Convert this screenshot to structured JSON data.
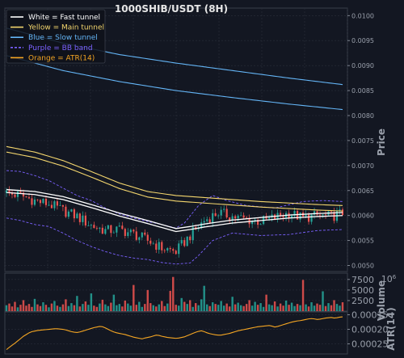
{
  "chart_data": {
    "type": "line",
    "title": "1000SHIB/USDT (8H)",
    "candle_count": 120,
    "colors": {
      "background": "#131722",
      "grid": "#2a2f3b",
      "up": "#26a69a",
      "down": "#ef5350",
      "fast_tunnel": "#ffffff",
      "main_tunnel": "#f5d76e",
      "slow_tunnel": "#64b5f6",
      "bb_band": "#7b61ff",
      "atr": "#f5a623"
    },
    "legend": {
      "placement": "top-left",
      "entries": [
        {
          "label": "White = Fast tunnel",
          "color": "#ffffff",
          "dash": false
        },
        {
          "label": "Yellow = Main tunnel",
          "color": "#f5d76e",
          "dash": false
        },
        {
          "label": "Blue = Slow tunnel",
          "color": "#64b5f6",
          "dash": false
        },
        {
          "label": "Purple = BB band",
          "color": "#7b61ff",
          "dash": true
        },
        {
          "label": "Orange = ATR(14)",
          "color": "#f5a623",
          "dash": false
        }
      ]
    },
    "price_panel": {
      "ylabel": "Price",
      "ylim": [
        0.00488,
        0.01015
      ],
      "ticks": [
        0.005,
        0.0055,
        0.006,
        0.0065,
        0.007,
        0.0075,
        0.008,
        0.0085,
        0.009,
        0.0095,
        0.01
      ],
      "tick_labels": [
        "0.0050",
        "0.0055",
        "0.0060",
        "0.0065",
        "0.0070",
        "0.0075",
        "0.0080",
        "0.0085",
        "0.0090",
        "0.0095",
        "0.0100"
      ],
      "grid": true,
      "close_path": [
        [
          0,
          0.00645
        ],
        [
          5,
          0.0064
        ],
        [
          10,
          0.0063
        ],
        [
          15,
          0.00623
        ],
        [
          20,
          0.0061
        ],
        [
          25,
          0.00598
        ],
        [
          30,
          0.0058
        ],
        [
          35,
          0.0057
        ],
        [
          40,
          0.00572
        ],
        [
          45,
          0.00563
        ],
        [
          50,
          0.0055
        ],
        [
          55,
          0.00535
        ],
        [
          60,
          0.00528
        ],
        [
          65,
          0.0056
        ],
        [
          70,
          0.0059
        ],
        [
          75,
          0.00606
        ],
        [
          80,
          0.00598
        ],
        [
          85,
          0.00592
        ],
        [
          90,
          0.00588
        ],
        [
          95,
          0.00596
        ],
        [
          100,
          0.00605
        ],
        [
          105,
          0.00595
        ],
        [
          110,
          0.006
        ],
        [
          115,
          0.00598
        ],
        [
          119,
          0.00605
        ]
      ],
      "fast_tunnel_upper": [
        [
          0,
          0.00652
        ],
        [
          10,
          0.00648
        ],
        [
          20,
          0.00638
        ],
        [
          30,
          0.00622
        ],
        [
          40,
          0.00605
        ],
        [
          50,
          0.0059
        ],
        [
          55,
          0.00582
        ],
        [
          60,
          0.00574
        ],
        [
          65,
          0.00578
        ],
        [
          70,
          0.00583
        ],
        [
          80,
          0.00591
        ],
        [
          90,
          0.00596
        ],
        [
          100,
          0.00601
        ],
        [
          110,
          0.00604
        ],
        [
          119,
          0.00606
        ]
      ],
      "fast_tunnel_lower": [
        [
          0,
          0.00646
        ],
        [
          10,
          0.00642
        ],
        [
          20,
          0.00632
        ],
        [
          30,
          0.00616
        ],
        [
          40,
          0.00599
        ],
        [
          50,
          0.00584
        ],
        [
          55,
          0.00576
        ],
        [
          60,
          0.00568
        ],
        [
          65,
          0.00572
        ],
        [
          70,
          0.00577
        ],
        [
          80,
          0.00585
        ],
        [
          90,
          0.0059
        ],
        [
          100,
          0.00595
        ],
        [
          110,
          0.00598
        ],
        [
          119,
          0.006
        ]
      ],
      "main_tunnel_upper": [
        [
          0,
          0.00738
        ],
        [
          10,
          0.00727
        ],
        [
          20,
          0.0071
        ],
        [
          30,
          0.00688
        ],
        [
          40,
          0.00665
        ],
        [
          50,
          0.00648
        ],
        [
          60,
          0.0064
        ],
        [
          70,
          0.00636
        ],
        [
          80,
          0.00632
        ],
        [
          90,
          0.00628
        ],
        [
          100,
          0.00625
        ],
        [
          110,
          0.00622
        ],
        [
          119,
          0.0062
        ]
      ],
      "main_tunnel_lower": [
        [
          0,
          0.00727
        ],
        [
          10,
          0.00716
        ],
        [
          20,
          0.00699
        ],
        [
          30,
          0.00677
        ],
        [
          40,
          0.00654
        ],
        [
          50,
          0.00637
        ],
        [
          60,
          0.00629
        ],
        [
          70,
          0.00625
        ],
        [
          80,
          0.00621
        ],
        [
          90,
          0.00617
        ],
        [
          100,
          0.00614
        ],
        [
          110,
          0.00611
        ],
        [
          119,
          0.00609
        ]
      ],
      "slow_tunnel_upper": [
        [
          0,
          0.00975
        ],
        [
          20,
          0.00945
        ],
        [
          40,
          0.00922
        ],
        [
          60,
          0.00905
        ],
        [
          80,
          0.0089
        ],
        [
          100,
          0.00875
        ],
        [
          119,
          0.00862
        ]
      ],
      "slow_tunnel_lower": [
        [
          0,
          0.0092
        ],
        [
          20,
          0.0089
        ],
        [
          40,
          0.00868
        ],
        [
          60,
          0.0085
        ],
        [
          80,
          0.00836
        ],
        [
          100,
          0.00823
        ],
        [
          119,
          0.00812
        ]
      ],
      "bb_upper": [
        [
          0,
          0.0069
        ],
        [
          5,
          0.00688
        ],
        [
          10,
          0.0068
        ],
        [
          15,
          0.0067
        ],
        [
          20,
          0.00655
        ],
        [
          25,
          0.0064
        ],
        [
          30,
          0.0063
        ],
        [
          35,
          0.00615
        ],
        [
          40,
          0.00603
        ],
        [
          45,
          0.00595
        ],
        [
          50,
          0.00588
        ],
        [
          55,
          0.00582
        ],
        [
          60,
          0.00575
        ],
        [
          63,
          0.00585
        ],
        [
          68,
          0.0062
        ],
        [
          73,
          0.0064
        ],
        [
          78,
          0.0063
        ],
        [
          85,
          0.0062
        ],
        [
          95,
          0.00615
        ],
        [
          105,
          0.00628
        ],
        [
          112,
          0.0063
        ],
        [
          119,
          0.00628
        ]
      ],
      "bb_lower": [
        [
          0,
          0.00595
        ],
        [
          5,
          0.0059
        ],
        [
          10,
          0.00582
        ],
        [
          15,
          0.00578
        ],
        [
          20,
          0.00565
        ],
        [
          25,
          0.0055
        ],
        [
          30,
          0.00538
        ],
        [
          35,
          0.00528
        ],
        [
          40,
          0.0052
        ],
        [
          45,
          0.00515
        ],
        [
          50,
          0.00512
        ],
        [
          55,
          0.00506
        ],
        [
          60,
          0.00503
        ],
        [
          65,
          0.00505
        ],
        [
          68,
          0.0052
        ],
        [
          73,
          0.0055
        ],
        [
          80,
          0.00565
        ],
        [
          90,
          0.0056
        ],
        [
          100,
          0.00562
        ],
        [
          110,
          0.0057
        ],
        [
          119,
          0.00572
        ]
      ]
    },
    "volume_panel": {
      "ylabel": "Volume",
      "offset_label": "10^6",
      "ylim": [
        0,
        9000
      ],
      "ticks": [
        2500,
        5000,
        7500
      ],
      "tick_labels": [
        "2500",
        "5000",
        "7500"
      ],
      "values": [
        1400,
        1800,
        1100,
        2200,
        900,
        1500,
        2600,
        1300,
        1700,
        1000,
        2900,
        1600,
        1200,
        2100,
        1500,
        900,
        1800,
        2400,
        1300,
        1000,
        1600,
        2800,
        1200,
        1900,
        1400,
        3600,
        1100,
        1700,
        2300,
        1500,
        4200,
        1300,
        1000,
        1800,
        2700,
        1600,
        1200,
        2000,
        3900,
        1400,
        1700,
        1100,
        2500,
        1800,
        1300,
        6200,
        1500,
        2200,
        1000,
        1700,
        5000,
        1900,
        1400,
        1100,
        1600,
        2400,
        1200,
        1800,
        4800,
        8100,
        1500,
        1300,
        3100,
        2200,
        1700,
        2600,
        1000,
        1900,
        1400,
        2800,
        6000,
        1600,
        1200,
        2100,
        1700,
        1500,
        2400,
        1300,
        1800,
        1100,
        3400,
        1600,
        2000,
        1400,
        1200,
        1700,
        2600,
        1300,
        2200,
        1500,
        1900,
        1000,
        3900,
        1600,
        1400,
        2300,
        1100,
        1800,
        1300,
        2500,
        1500,
        2000,
        1200,
        1700,
        1400,
        7400,
        1600,
        1100,
        2100,
        1300,
        1800,
        1500,
        4700,
        1200,
        1900,
        1400,
        2600,
        1700,
        1300,
        2100
      ]
    },
    "atr_panel": {
      "ylabel": "ATR(14)",
      "ylim": [
        0.00014,
        0.000285
      ],
      "ticks": [
        0.00015,
        0.0002,
        0.00025
      ],
      "tick_labels": [
        "0.00015",
        "0.00020",
        "0.00025"
      ],
      "values": [
        0.00027,
        0.000262,
        0.000255,
        0.000248,
        0.00024,
        0.000232,
        0.000224,
        0.000218,
        0.000212,
        0.000208,
        0.000206,
        0.000204,
        0.000203,
        0.000202,
        0.000201,
        0.0002,
        0.000199,
        0.000198,
        0.000198,
        0.000199,
        0.0002,
        0.000202,
        0.000205,
        0.000208,
        0.00021,
        0.000211,
        0.000209,
        0.000206,
        0.000203,
        0.0002,
        0.000197,
        0.000194,
        0.000192,
        0.00019,
        0.000191,
        0.000195,
        0.0002,
        0.000205,
        0.000209,
        0.000212,
        0.000214,
        0.000216,
        0.000218,
        0.000221,
        0.000224,
        0.000227,
        0.000229,
        0.000231,
        0.000233,
        0.00023,
        0.000228,
        0.000226,
        0.000223,
        0.00022,
        0.000221,
        0.000224,
        0.000226,
        0.000228,
        0.000229,
        0.00023,
        0.000231,
        0.00023,
        0.000228,
        0.000226,
        0.000222,
        0.000218,
        0.000214,
        0.00021,
        0.000207,
        0.000205,
        0.000208,
        0.000212,
        0.000215,
        0.000217,
        0.000219,
        0.00022,
        0.00022,
        0.000218,
        0.000216,
        0.000214,
        0.000211,
        0.000208,
        0.000205,
        0.000203,
        0.000201,
        0.000199,
        0.000197,
        0.000195,
        0.000193,
        0.000191,
        0.00019,
        0.000189,
        0.000188,
        0.000187,
        0.000189,
        0.000192,
        0.00019,
        0.000187,
        0.000184,
        0.000181,
        0.000178,
        0.000175,
        0.000173,
        0.000171,
        0.00017,
        0.000168,
        0.000166,
        0.000164,
        0.000163,
        0.000164,
        0.000166,
        0.000165,
        0.000163,
        0.000161,
        0.00016,
        0.000159,
        0.000161,
        0.00016,
        0.000158,
        0.000157
      ]
    }
  }
}
